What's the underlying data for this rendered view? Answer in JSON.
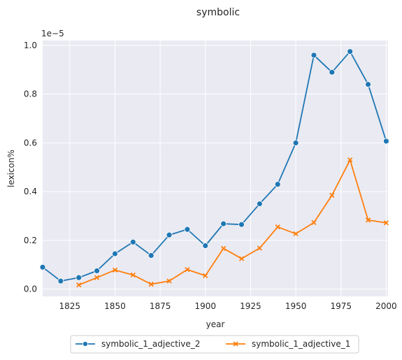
{
  "chart_data": {
    "type": "line",
    "title": "symbolic",
    "xlabel": "year",
    "ylabel": "lexicon%",
    "y_offset_label": "1e−5",
    "xlim": [
      1810,
      2001
    ],
    "ylim": [
      -0.03,
      1.02
    ],
    "x_ticks": [
      1825,
      1850,
      1875,
      1900,
      1925,
      1950,
      1975,
      2000
    ],
    "y_ticks": [
      0.0,
      0.2,
      0.4,
      0.6,
      0.8,
      1.0
    ],
    "y_tick_labels": [
      "0.0",
      "0.2",
      "0.4",
      "0.6",
      "0.8",
      "1.0"
    ],
    "grid": true,
    "legend_position": "below plot, centered",
    "series": [
      {
        "name": "symbolic_1_adjective_2",
        "color": "#1f77b4",
        "marker": "circle",
        "x": [
          1810,
          1820,
          1830,
          1840,
          1850,
          1860,
          1870,
          1880,
          1890,
          1900,
          1910,
          1920,
          1930,
          1940,
          1950,
          1960,
          1970,
          1980,
          1990,
          2000
        ],
        "y": [
          0.09,
          0.033,
          0.047,
          0.075,
          0.145,
          0.193,
          0.138,
          0.222,
          0.245,
          0.178,
          0.268,
          0.265,
          0.35,
          0.43,
          0.6,
          0.96,
          0.89,
          0.975,
          0.84,
          0.607
        ]
      },
      {
        "name": "symbolic_1_adjective_1",
        "color": "#ff7f0e",
        "marker": "x",
        "x": [
          1830,
          1840,
          1850,
          1860,
          1870,
          1880,
          1890,
          1900,
          1910,
          1920,
          1930,
          1940,
          1950,
          1960,
          1970,
          1980,
          1990,
          2000
        ],
        "y": [
          0.017,
          0.047,
          0.078,
          0.058,
          0.02,
          0.033,
          0.08,
          0.055,
          0.167,
          0.125,
          0.168,
          0.255,
          0.227,
          0.273,
          0.385,
          0.53,
          0.283,
          0.272
        ]
      }
    ]
  }
}
